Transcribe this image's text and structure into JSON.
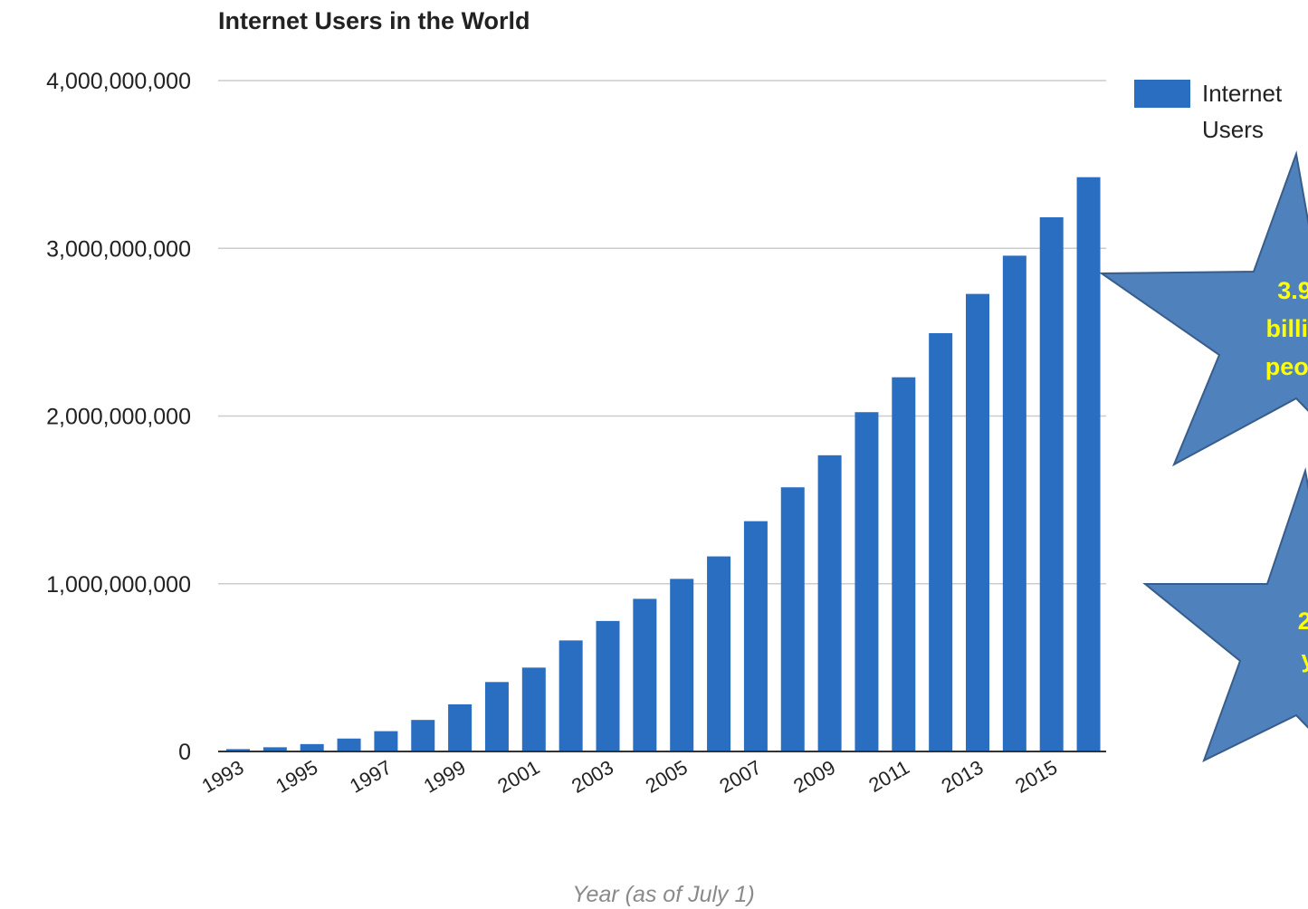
{
  "chart_data": {
    "type": "bar",
    "title": "Internet Users in the World",
    "xlabel": "Year (as of July 1)",
    "ylabel": "",
    "ylim": [
      0,
      4000000000
    ],
    "yticks": [
      0,
      1000000000,
      2000000000,
      3000000000,
      4000000000
    ],
    "ytick_labels": [
      "0",
      "1,000,000,000",
      "2,000,000,000",
      "3,000,000,000",
      "4,000,000,000"
    ],
    "categories": [
      "1993",
      "1994",
      "1995",
      "1996",
      "1997",
      "1998",
      "1999",
      "2000",
      "2001",
      "2002",
      "2003",
      "2004",
      "2005",
      "2006",
      "2007",
      "2008",
      "2009",
      "2010",
      "2011",
      "2012",
      "2013",
      "2014",
      "2015",
      "2016"
    ],
    "xtick_labels_shown": [
      "1993",
      "1995",
      "1997",
      "1999",
      "2001",
      "2003",
      "2005",
      "2007",
      "2009",
      "2011",
      "2013",
      "2015"
    ],
    "series": [
      {
        "name": "Internet Users",
        "color": "#2a6ec2",
        "values": [
          14000000,
          25000000,
          44000000,
          77000000,
          121000000,
          188000000,
          281000000,
          414000000,
          500000000,
          662000000,
          778000000,
          910000000,
          1029000000,
          1163000000,
          1373000000,
          1575000000,
          1766000000,
          2023000000,
          2231000000,
          2494000000,
          2728000000,
          2956000000,
          3185000000,
          3424000000
        ]
      }
    ],
    "grid": true,
    "legend_position": "right"
  },
  "annotations": {
    "star1_lines": [
      "3.9",
      "billio",
      "peop"
    ],
    "star2_lines": [
      "2.",
      "y"
    ]
  },
  "colors": {
    "bar": "#2a6ec2",
    "star_fill": "#4f81bd",
    "star_stroke": "#385d8a",
    "star_text": "#ffff00",
    "grid": "#cccccc"
  }
}
